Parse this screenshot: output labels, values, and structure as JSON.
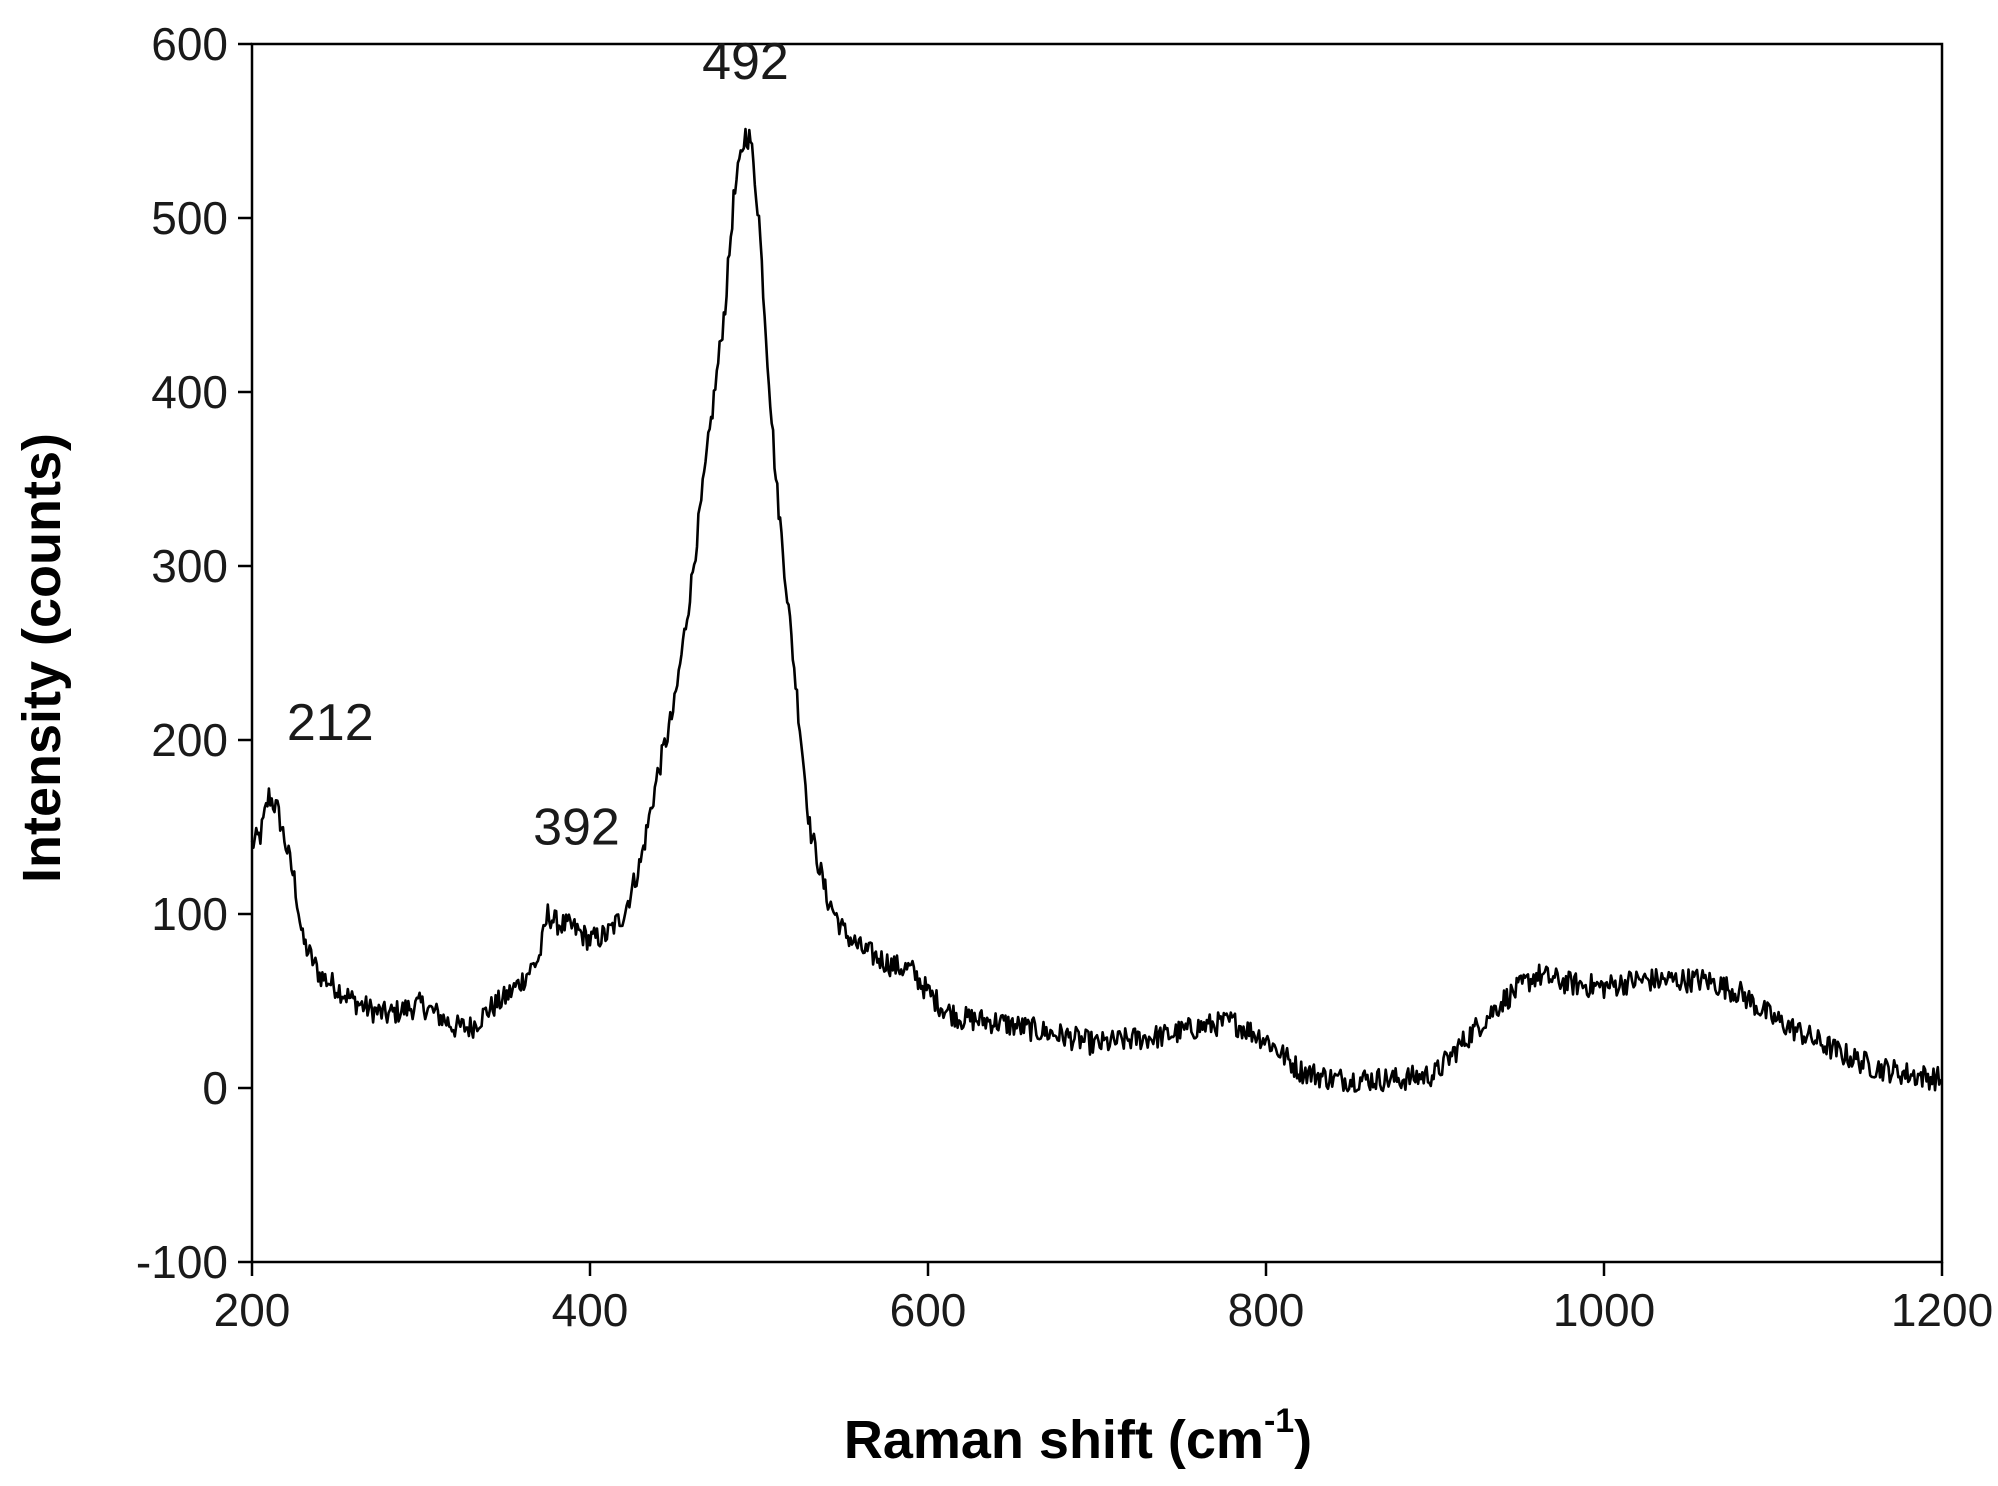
{
  "chart_data": {
    "type": "line",
    "title": "",
    "xlabel": "Raman shift (cm",
    "xlabel_sup": "-1",
    "xlabel_close": ")",
    "ylabel": "Intensity (counts)",
    "xlim": [
      200,
      1200
    ],
    "ylim": [
      -100,
      600
    ],
    "xticks": [
      200,
      400,
      600,
      800,
      1000,
      1200
    ],
    "yticks": [
      -100,
      0,
      100,
      200,
      300,
      400,
      500,
      600
    ],
    "grid": false,
    "legend": "none",
    "line_color": "#000000",
    "annotations": [
      {
        "text": "212",
        "x": 212,
        "y": 200
      },
      {
        "text": "392",
        "x": 392,
        "y": 140
      },
      {
        "text": "492",
        "x": 492,
        "y": 580
      }
    ],
    "series": [
      {
        "x": [
          200,
          205,
          210,
          215,
          220,
          225,
          230,
          240,
          250,
          260,
          270,
          280,
          290,
          300,
          310,
          320,
          330,
          340,
          350,
          360,
          370,
          375,
          380,
          390,
          400,
          410,
          420,
          430,
          440,
          450,
          460,
          470,
          480,
          485,
          490,
          492,
          495,
          500,
          505,
          510,
          520,
          530,
          540,
          550,
          560,
          570,
          580,
          590,
          600,
          610,
          620,
          640,
          660,
          680,
          700,
          720,
          740,
          760,
          780,
          800,
          820,
          840,
          860,
          880,
          900,
          920,
          940,
          960,
          980,
          1000,
          1020,
          1040,
          1060,
          1080,
          1100,
          1120,
          1140,
          1160,
          1180,
          1200
        ],
        "y": [
          140,
          145,
          168,
          160,
          140,
          120,
          85,
          65,
          58,
          50,
          45,
          42,
          45,
          48,
          42,
          35,
          35,
          45,
          52,
          62,
          75,
          100,
          95,
          92,
          85,
          88,
          100,
          130,
          180,
          220,
          290,
          370,
          450,
          510,
          540,
          548,
          545,
          500,
          420,
          350,
          250,
          150,
          110,
          90,
          80,
          75,
          70,
          68,
          55,
          45,
          40,
          38,
          34,
          30,
          25,
          28,
          30,
          35,
          38,
          28,
          10,
          5,
          5,
          5,
          8,
          30,
          50,
          65,
          60,
          58,
          62,
          62,
          62,
          55,
          40,
          30,
          20,
          12,
          8,
          5
        ]
      }
    ]
  }
}
